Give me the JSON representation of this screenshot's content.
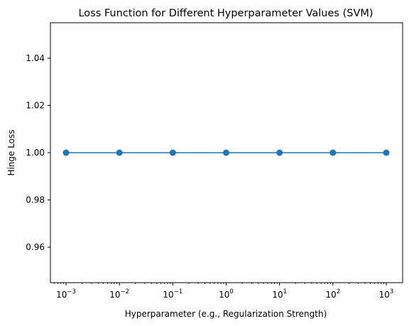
{
  "chart_data": {
    "type": "line",
    "title": "Loss Function for Different Hyperparameter Values (SVM)",
    "xlabel": "Hyperparameter (e.g., Regularization Strength)",
    "ylabel": "Hinge Loss",
    "x_scale": "log",
    "x_tick_base": "10",
    "x": [
      0.001,
      0.01,
      0.1,
      1,
      10,
      100,
      1000
    ],
    "x_tick_exponents": [
      "−3",
      "−2",
      "−1",
      "0",
      "1",
      "2",
      "3"
    ],
    "series": [
      {
        "name": "Hinge Loss",
        "values": [
          1.0,
          1.0,
          1.0,
          1.0,
          1.0,
          1.0,
          1.0
        ],
        "color": "#1f77b4",
        "marker": "circle"
      }
    ],
    "ylim": [
      0.945,
      1.055
    ],
    "y_ticks": [
      0.96,
      0.98,
      1.0,
      1.02,
      1.04
    ],
    "y_tick_labels": [
      "0.96",
      "0.98",
      "1.00",
      "1.02",
      "1.04"
    ],
    "grid": false,
    "legend": "none"
  }
}
